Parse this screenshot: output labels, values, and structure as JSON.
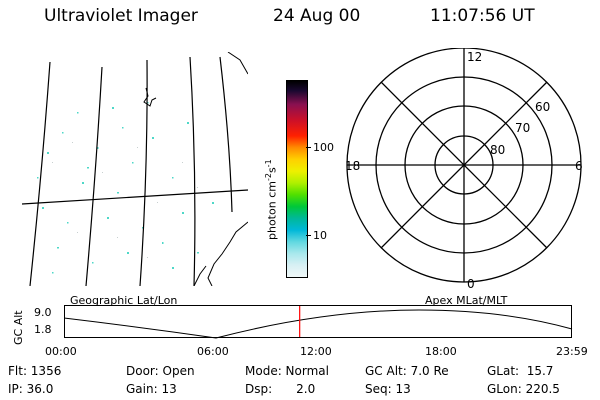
{
  "header": {
    "title": "Ultraviolet Imager",
    "date": "24 Aug 00",
    "time": "11:07:56 UT"
  },
  "colorbar": {
    "label": "photon cm",
    "label_exp1": "-2",
    "label_mid": "s",
    "label_exp2": "-1",
    "ticks": [
      "100",
      "10"
    ]
  },
  "polar": {
    "mlt_labels": {
      "top": "12",
      "left": "18",
      "right": "6",
      "bottom": "0"
    },
    "lat_labels": [
      "60",
      "70",
      "80"
    ]
  },
  "map_labels": {
    "left": "Geographic Lat/Lon",
    "right": "Apex MLat/MLT"
  },
  "timeline": {
    "axis_label": "GC Alt",
    "y_ticks": [
      "9.0",
      "1.8"
    ],
    "x_ticks": [
      "00:00",
      "06:00",
      "12:00",
      "18:00",
      "23:59"
    ],
    "current_time_fraction": 0.4638,
    "marker_color": "#ff0000"
  },
  "footer": {
    "flt": "Flt: 1356",
    "ip": "IP: 36.0",
    "door": "Door: Open",
    "gain": "Gain: 13",
    "mode": "Mode: Normal",
    "dsp_label": "Dsp:",
    "dsp_value": "2.0",
    "gcalt": "GC Alt: 7.0 Re",
    "seq": "Seq: 13",
    "glat": "GLat:  15.7",
    "glon": "GLon: 220.5"
  }
}
